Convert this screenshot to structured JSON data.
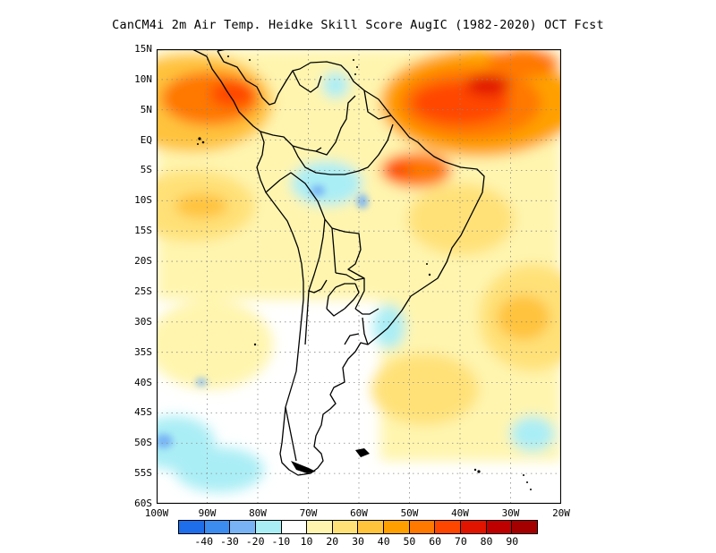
{
  "title": "CanCM4i  2m Air Temp. Heidke Skill Score AugIC (1982-2020) OCT Fcst",
  "map": {
    "lat_labels": [
      "15N",
      "10N",
      "5N",
      "EQ",
      "5S",
      "10S",
      "15S",
      "20S",
      "25S",
      "30S",
      "35S",
      "40S",
      "45S",
      "50S",
      "55S",
      "60S"
    ],
    "lon_labels": [
      "100W",
      "90W",
      "80W",
      "70W",
      "60W",
      "50W",
      "40W",
      "30W",
      "20W"
    ],
    "grid": "dotted"
  },
  "colorbar": {
    "colors": [
      "#1e6eeb",
      "#3c8cf0",
      "#78b4f5",
      "#aaeef5",
      "#ffffff",
      "#fff5af",
      "#ffe178",
      "#ffc33c",
      "#ffa000",
      "#ff7800",
      "#ff4600",
      "#e11400",
      "#be0000",
      "#a50000"
    ],
    "labels": [
      "-40",
      "-30",
      "-20",
      "-10",
      "10",
      "20",
      "30",
      "40",
      "50",
      "60",
      "70",
      "80",
      "90"
    ]
  }
}
